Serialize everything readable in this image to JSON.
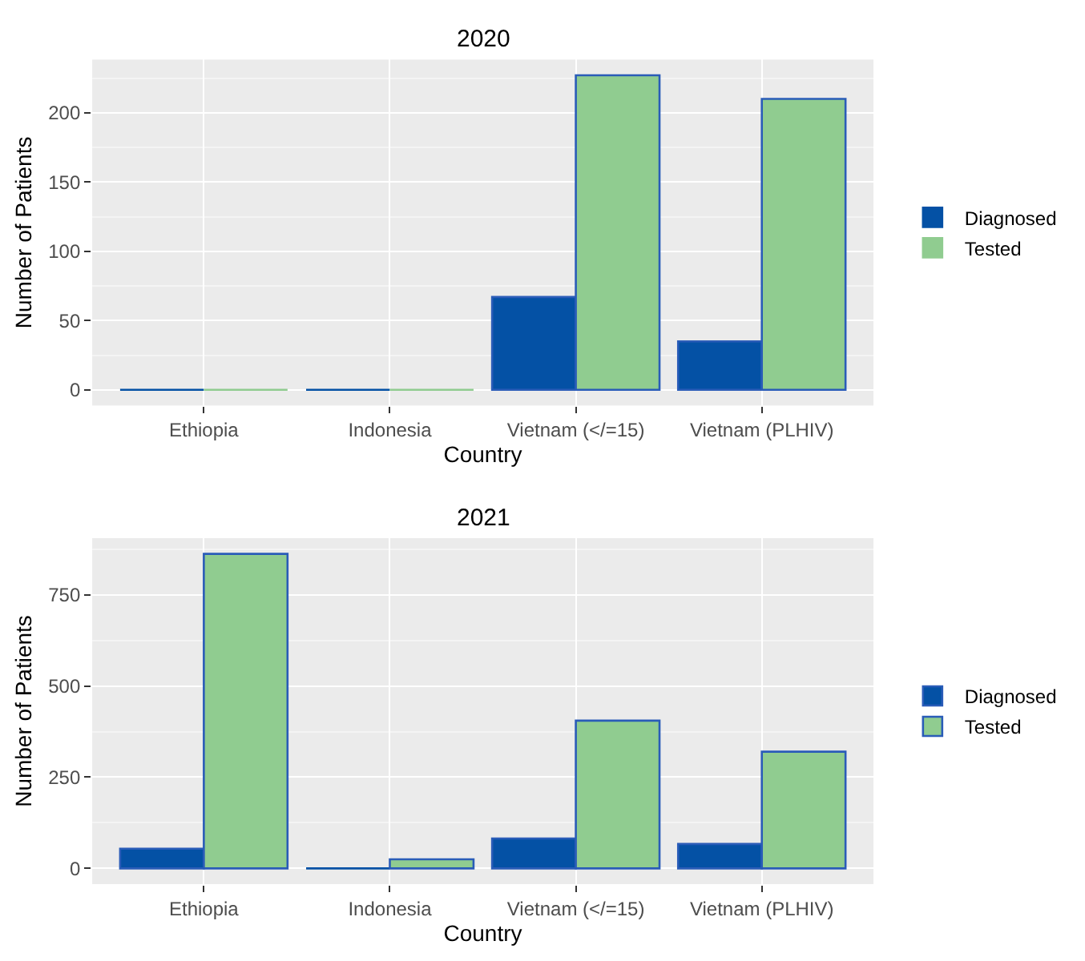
{
  "chart_data": [
    {
      "type": "bar",
      "title": "2020",
      "xlabel": "Country",
      "ylabel": "Number of Patients",
      "categories": [
        "Ethiopia",
        "Indonesia",
        "Vietnam (</=15)",
        "Vietnam (PLHIV)"
      ],
      "series": [
        {
          "name": "Diagnosed",
          "color": "#0451a5",
          "values": [
            0,
            0,
            67,
            35
          ]
        },
        {
          "name": "Tested",
          "color": "#90cc90",
          "values": [
            0,
            0,
            227,
            210
          ]
        }
      ],
      "ylim": [
        -11.35,
        238.35
      ],
      "yticks": [
        0,
        50,
        100,
        150,
        200
      ],
      "grid": true,
      "legend": "right"
    },
    {
      "type": "bar",
      "title": "2021",
      "xlabel": "Country",
      "ylabel": "Number of Patients",
      "categories": [
        "Ethiopia",
        "Indonesia",
        "Vietnam (</=15)",
        "Vietnam (PLHIV)"
      ],
      "series": [
        {
          "name": "Diagnosed",
          "color": "#0451a5",
          "values": [
            54,
            0,
            82,
            67
          ]
        },
        {
          "name": "Tested",
          "color": "#90cc90",
          "values": [
            862,
            25,
            405,
            320
          ]
        }
      ],
      "ylim": [
        -43,
        905
      ],
      "yticks": [
        0,
        250,
        500,
        750
      ],
      "grid": true,
      "legend": "right"
    }
  ]
}
